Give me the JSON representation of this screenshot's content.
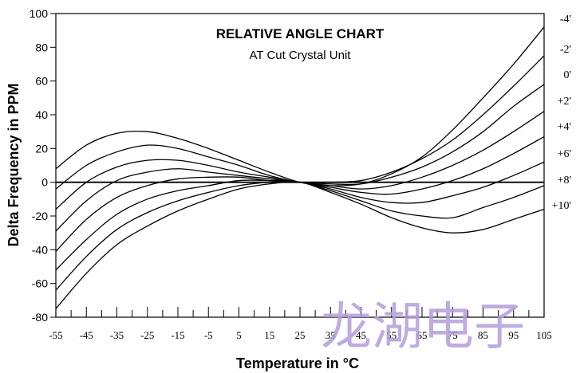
{
  "chart_data": {
    "type": "line",
    "title": "RELATIVE ANGLE CHART",
    "subtitle": "AT Cut Crystal Unit",
    "xlabel": "Temperature in °C",
    "ylabel": "Delta Frequency in PPM",
    "xlim": [
      -55,
      105
    ],
    "ylim": [
      -80,
      100
    ],
    "x_ticks": [
      -55,
      -45,
      -35,
      -25,
      -15,
      -5,
      5,
      15,
      25,
      35,
      45,
      55,
      65,
      75,
      85,
      95,
      105
    ],
    "x_tick_labels": [
      "-55",
      "-45",
      "-35",
      "-25",
      "-15",
      "-5",
      "5",
      "15",
      "25",
      "35",
      "45",
      "55",
      "65",
      "75",
      "85",
      "95",
      "105"
    ],
    "y_ticks": [
      -80,
      -60,
      -40,
      -20,
      0,
      20,
      40,
      60,
      80,
      100
    ],
    "y_tick_labels": [
      "-80",
      "-60",
      "-40",
      "-20",
      "0",
      "20",
      "40",
      "60",
      "80",
      "100"
    ],
    "grid": false,
    "reference_line": 0,
    "x": [
      -55,
      -45,
      -35,
      -25,
      -15,
      -5,
      5,
      15,
      25,
      35,
      45,
      55,
      65,
      75,
      85,
      95,
      105
    ],
    "series": [
      {
        "name": "-4'",
        "values": [
          8,
          22,
          29,
          30,
          26,
          20,
          13,
          6,
          0,
          -2,
          -1,
          5,
          15,
          31,
          50,
          70,
          92
        ]
      },
      {
        "name": "-2'",
        "values": [
          -4,
          10,
          18,
          22,
          20,
          15,
          10,
          4,
          0,
          0,
          1,
          6,
          14,
          25,
          40,
          57,
          75
        ]
      },
      {
        "name": "0'",
        "values": [
          -16,
          0,
          9,
          13,
          13,
          10,
          6,
          3,
          0,
          -1,
          -1,
          3,
          9,
          18,
          30,
          45,
          58
        ]
      },
      {
        "name": "+2'",
        "values": [
          -29,
          -11,
          1,
          6,
          8,
          6,
          4,
          2,
          0,
          -2,
          -4,
          -2,
          3,
          10,
          19,
          30,
          42
        ]
      },
      {
        "name": "+4'",
        "values": [
          -41,
          -22,
          -9,
          -2,
          2,
          3,
          3,
          1,
          0,
          -3,
          -6,
          -7,
          -4,
          1,
          8,
          17,
          27
        ]
      },
      {
        "name": "+6'",
        "values": [
          -52,
          -34,
          -19,
          -10,
          -5,
          -2,
          1,
          1,
          0,
          -4,
          -9,
          -12,
          -12,
          -8,
          -3,
          4,
          12
        ]
      },
      {
        "name": "+8'",
        "values": [
          -64,
          -44,
          -28,
          -18,
          -11,
          -6,
          -2,
          0,
          0,
          -5,
          -11,
          -17,
          -20,
          -21,
          -15,
          -9,
          -2
        ]
      },
      {
        "name": "+10'",
        "values": [
          -75,
          -54,
          -37,
          -26,
          -17,
          -10,
          -4,
          -1,
          0,
          -6,
          -13,
          -21,
          -27,
          -30,
          -28,
          -22,
          -16
        ]
      }
    ]
  },
  "watermark": "龙湖电子"
}
